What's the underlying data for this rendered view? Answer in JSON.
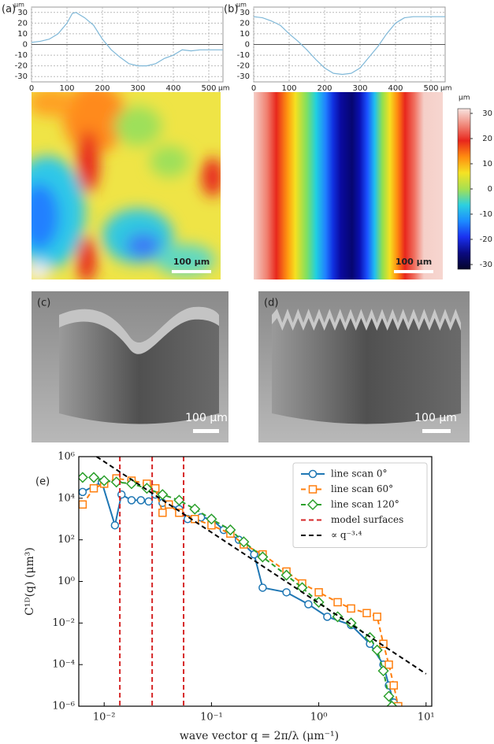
{
  "chart_data": [
    {
      "type": "line",
      "label": "(a)",
      "y_unit": "μm",
      "x_unit": "μm",
      "color": "#7fb8d8",
      "grid": true,
      "zero_line": true,
      "x": [
        0,
        25,
        50,
        75,
        100,
        115,
        125,
        150,
        175,
        200,
        225,
        250,
        275,
        300,
        325,
        350,
        375,
        400,
        425,
        450,
        475,
        500,
        540
      ],
      "values": [
        2,
        3,
        5,
        10,
        20,
        29,
        30,
        25,
        18,
        5,
        -5,
        -12,
        -18,
        -20,
        -20,
        -18,
        -13,
        -10,
        -5,
        -6,
        -5,
        -5,
        -5
      ],
      "xlim": [
        0,
        540
      ],
      "ylim": [
        -35,
        35
      ],
      "xticks": [
        0,
        100,
        200,
        300,
        400,
        500
      ],
      "yticks": [
        -30,
        -20,
        -10,
        0,
        10,
        20,
        30
      ]
    },
    {
      "type": "line",
      "label": "(b)",
      "y_unit": "μm",
      "x_unit": "μm",
      "color": "#7fb8d8",
      "grid": true,
      "zero_line": true,
      "x": [
        0,
        25,
        50,
        75,
        100,
        125,
        150,
        175,
        200,
        225,
        250,
        275,
        300,
        325,
        350,
        375,
        400,
        425,
        450,
        475,
        500,
        540
      ],
      "values": [
        26,
        25,
        22,
        18,
        10,
        3,
        -5,
        -14,
        -22,
        -27,
        -28,
        -27,
        -22,
        -12,
        -2,
        10,
        20,
        25,
        26,
        26,
        26,
        26
      ],
      "xlim": [
        0,
        540
      ],
      "ylim": [
        -35,
        35
      ],
      "xticks": [
        0,
        100,
        200,
        300,
        400,
        500
      ],
      "yticks": [
        -30,
        -20,
        -10,
        0,
        10,
        20,
        30
      ]
    },
    {
      "type": "colorbar",
      "unit": "μm",
      "ylim": [
        -30,
        30
      ],
      "yticks": [
        30,
        20,
        10,
        0,
        -10,
        -20,
        -30
      ],
      "colors": [
        "#f8e4e0",
        "#f08a7c",
        "#e8261c",
        "#ff8c10",
        "#f5e224",
        "#a6e052",
        "#2cd0e0",
        "#1c8cff",
        "#1a30f0",
        "#0a0a80",
        "#05052a"
      ]
    },
    {
      "type": "line",
      "label": "(e)",
      "x_label": "wave vector q = 2π/λ (μm⁻¹)",
      "y_label": "C¹ᴰ(q) (μm³)",
      "xscale": "log",
      "yscale": "log",
      "xlim": [
        0.0058,
        11.3
      ],
      "ylim": [
        1e-06,
        1000000.0
      ],
      "legend": "upper right",
      "xticks": [
        {
          "value": 0.01,
          "label": "10⁻²"
        },
        {
          "value": 0.1,
          "label": "10⁻¹"
        },
        {
          "value": 1,
          "label": "10⁰"
        },
        {
          "value": 10,
          "label": "10¹"
        }
      ],
      "yticks": [
        {
          "value": 1e-06,
          "label": "10⁻⁶"
        },
        {
          "value": 0.0001,
          "label": "10⁻⁴"
        },
        {
          "value": 0.01,
          "label": "10⁻²"
        },
        {
          "value": 1,
          "label": "10⁰"
        },
        {
          "value": 100,
          "label": "10²"
        },
        {
          "value": 10000,
          "label": "10⁴"
        },
        {
          "value": 1000000,
          "label": "10⁶"
        }
      ],
      "series": [
        {
          "name": "line scan 0°",
          "color": "#1f77b4",
          "linestyle": "solid",
          "marker": "circle",
          "x": [
            0.0063,
            0.0095,
            0.0126,
            0.0145,
            0.018,
            0.022,
            0.026,
            0.03,
            0.035,
            0.04,
            0.05,
            0.06,
            0.08,
            0.1,
            0.13,
            0.18,
            0.25,
            0.3,
            0.5,
            0.8,
            1.2,
            2,
            3,
            4,
            4.5,
            5
          ],
          "values": [
            20000,
            60000,
            500,
            15000,
            8000,
            8000,
            7000,
            15000,
            6000,
            5000,
            3000,
            1000,
            1200,
            1000,
            300,
            100,
            20,
            0.5,
            0.3,
            0.08,
            0.02,
            0.008,
            0.001,
            0.0001,
            1e-05,
            1.5e-06
          ]
        },
        {
          "name": "line scan 60°",
          "color": "#ff7f0e",
          "linestyle": "dashed",
          "marker": "square",
          "x": [
            0.0063,
            0.008,
            0.01,
            0.013,
            0.018,
            0.025,
            0.03,
            0.035,
            0.04,
            0.05,
            0.07,
            0.1,
            0.15,
            0.2,
            0.3,
            0.5,
            0.7,
            1,
            1.5,
            2,
            2.8,
            3.5,
            4,
            4.5,
            5,
            5.5
          ],
          "values": [
            5000,
            30000,
            50000,
            90000,
            70000,
            50000,
            30000,
            2000,
            5000,
            2000,
            1000,
            500,
            200,
            60,
            20,
            3,
            0.8,
            0.3,
            0.1,
            0.05,
            0.03,
            0.02,
            0.001,
            0.0001,
            1e-05,
            1e-06
          ]
        },
        {
          "name": "line scan 120°",
          "color": "#2ca02c",
          "linestyle": "dashed",
          "marker": "diamond",
          "x": [
            0.0063,
            0.008,
            0.01,
            0.013,
            0.018,
            0.025,
            0.035,
            0.05,
            0.07,
            0.1,
            0.15,
            0.2,
            0.3,
            0.5,
            0.7,
            1,
            1.5,
            2,
            3,
            3.5,
            4,
            4.5,
            4.8
          ],
          "values": [
            100000,
            100000,
            70000,
            60000,
            50000,
            30000,
            15000,
            8000,
            3000,
            1000,
            300,
            80,
            15,
            2,
            0.5,
            0.1,
            0.02,
            0.01,
            0.002,
            0.0005,
            5e-05,
            3e-06,
            1e-06
          ]
        },
        {
          "name": "model surfaces",
          "color": "#d62728",
          "kind": "vline",
          "linestyle": "dashed",
          "x": [
            0.014,
            0.028,
            0.055
          ]
        },
        {
          "name": "∝ q⁻³·⁴",
          "color": "#000000",
          "linestyle": "dashed",
          "x": [
            0.0085,
            10
          ],
          "values": [
            1000000,
            3.6e-05
          ]
        }
      ]
    }
  ],
  "maps": [
    {
      "scale_bar": "100 μm"
    },
    {
      "scale_bar": "100 μm"
    }
  ],
  "images": [
    {
      "label": "(c)",
      "scale_bar": "100 μm"
    },
    {
      "label": "(d)",
      "scale_bar": "100 μm"
    }
  ]
}
